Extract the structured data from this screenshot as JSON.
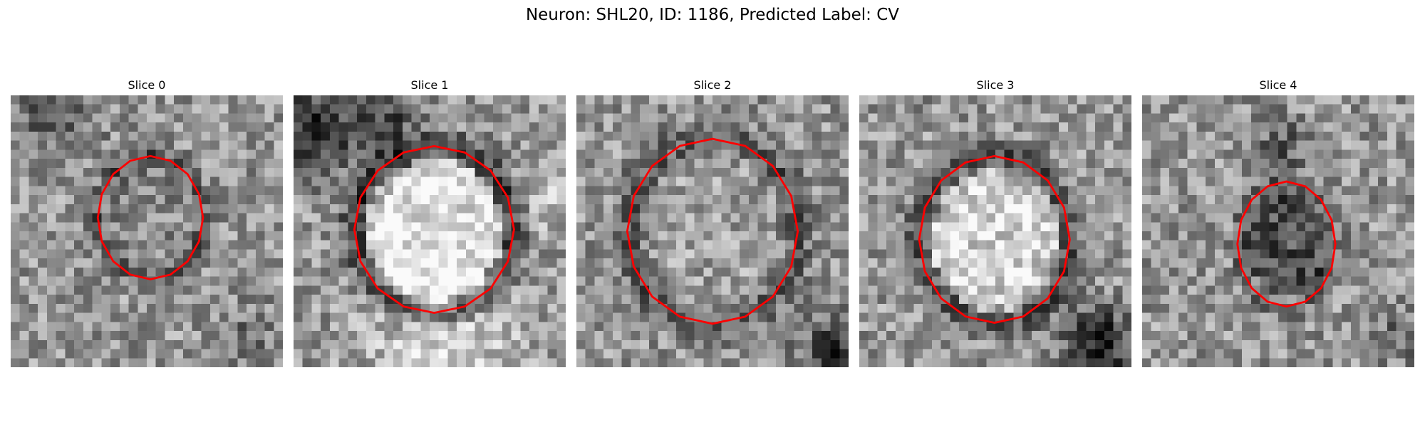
{
  "title": "Neuron: SHL20, ID: 1186, Predicted Label: CV",
  "panels": [
    {
      "label": "Slice 0"
    },
    {
      "label": "Slice 1"
    },
    {
      "label": "Slice 2"
    },
    {
      "label": "Slice 3"
    },
    {
      "label": "Slice 4"
    }
  ]
}
